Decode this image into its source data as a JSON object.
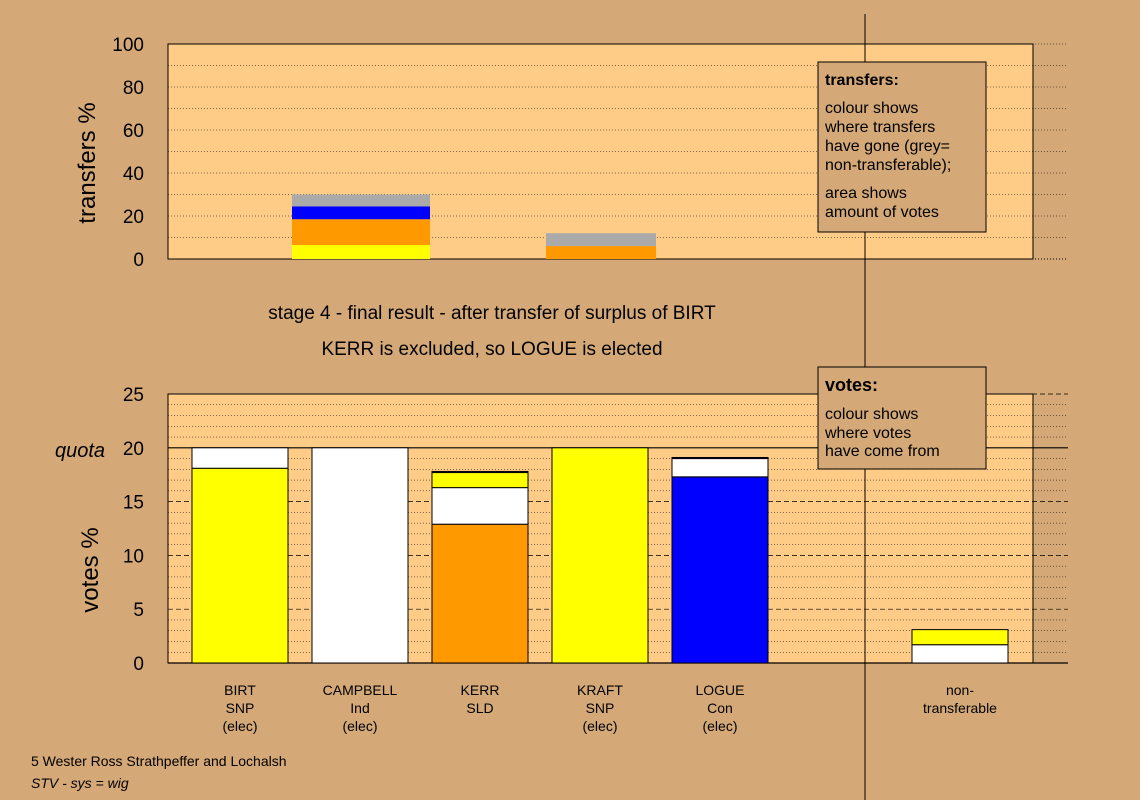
{
  "header": {
    "title_line1": "stage 4 - final result - after transfer of surplus of BIRT",
    "title_line2": "KERR is excluded, so LOGUE is elected"
  },
  "footer": {
    "line1": "5 Wester Ross Strathpeffer and Lochalsh",
    "line2": "STV - sys = wig"
  },
  "transfers_box": {
    "title": "transfers:",
    "lines": [
      "colour shows",
      "where transfers",
      "have gone (grey=",
      "non-transferable);"
    ],
    "lines2": [
      "area shows",
      "amount of votes"
    ]
  },
  "votes_box": {
    "title": "votes:",
    "lines": [
      "colour shows",
      "where votes",
      "have come from"
    ]
  },
  "colors": {
    "background": "#d4a977",
    "plot_bg": "#ffcc88",
    "snp_yellow": "#ffff00",
    "sld_orange": "#ff9900",
    "con_blue": "#0000ff",
    "ind_white": "#ffffff",
    "nontransferable_grey": "#aaaaaa"
  },
  "chart_data": [
    {
      "type": "bar",
      "stacked": true,
      "ylabel": "transfers %",
      "ylim": [
        0,
        100
      ],
      "yticks": [
        0,
        20,
        40,
        60,
        80,
        100
      ],
      "grid": "dotted",
      "bars": [
        {
          "position": 2,
          "segments": [
            {
              "color": "#ffff00",
              "value": 6.5
            },
            {
              "color": "#ff9900",
              "value": 12
            },
            {
              "color": "#0000ff",
              "value": 6
            },
            {
              "color": "#aaaaaa",
              "value": 5.5
            }
          ]
        },
        {
          "position": 4,
          "segments": [
            {
              "color": "#ff9900",
              "value": 6
            },
            {
              "color": "#aaaaaa",
              "value": 6
            }
          ]
        }
      ]
    },
    {
      "type": "bar",
      "stacked": true,
      "ylabel": "votes %",
      "ylim": [
        0,
        25
      ],
      "yticks": [
        0,
        5,
        10,
        15,
        20,
        25
      ],
      "quota": {
        "label": "quota",
        "value": 20
      },
      "grid": "dashed",
      "categories": [
        {
          "lines": [
            "BIRT",
            "SNP",
            "(elec)"
          ]
        },
        {
          "lines": [
            "CAMPBELL",
            "Ind",
            "(elec)"
          ]
        },
        {
          "lines": [
            "KERR",
            "SLD"
          ]
        },
        {
          "lines": [
            "KRAFT",
            "SNP",
            "(elec)"
          ]
        },
        {
          "lines": [
            "LOGUE",
            "Con",
            "(elec)"
          ]
        },
        {
          "lines": []
        },
        {
          "lines": [
            "non-",
            "transferable"
          ]
        }
      ],
      "bars": [
        {
          "segments": [
            {
              "color": "#ffff00",
              "value": 18.1
            },
            {
              "color": "#ffffff",
              "value": 1.9
            }
          ]
        },
        {
          "segments": [
            {
              "color": "#ffffff",
              "value": 20
            }
          ]
        },
        {
          "segments": [
            {
              "color": "#ff9900",
              "value": 12.9
            },
            {
              "color": "#ffffff",
              "value": 3.4
            },
            {
              "color": "#ffff00",
              "value": 1.4
            },
            {
              "color": "#0000ff",
              "value": 0.1
            }
          ]
        },
        {
          "segments": [
            {
              "color": "#ffff00",
              "value": 20
            }
          ]
        },
        {
          "segments": [
            {
              "color": "#0000ff",
              "value": 17.3
            },
            {
              "color": "#ffffff",
              "value": 1.7
            },
            {
              "color": "#0000ff",
              "value": 0.1
            }
          ]
        },
        {
          "segments": []
        },
        {
          "segments": [
            {
              "color": "#ffffff",
              "value": 1.7
            },
            {
              "color": "#ffff00",
              "value": 1.4
            }
          ]
        }
      ]
    }
  ]
}
